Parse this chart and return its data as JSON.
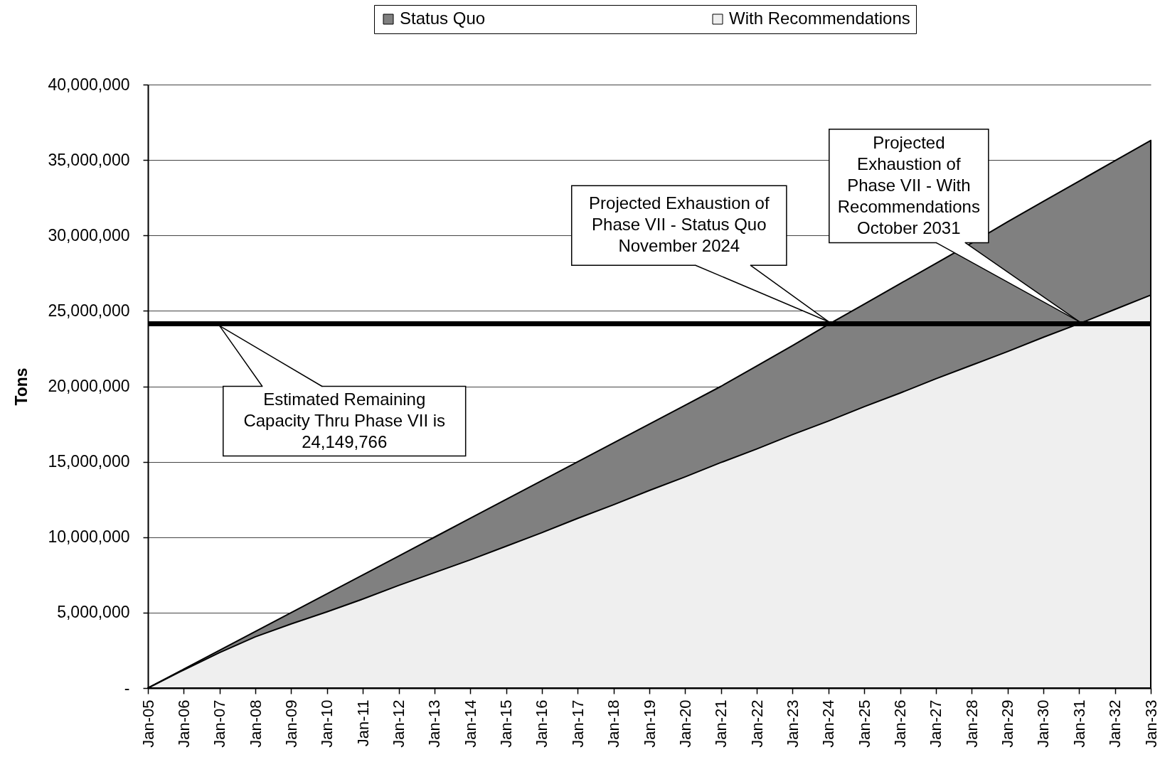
{
  "chart_data": {
    "type": "area",
    "ylabel": "Tons",
    "categories": [
      "Jan-05",
      "Jan-06",
      "Jan-07",
      "Jan-08",
      "Jan-09",
      "Jan-10",
      "Jan-11",
      "Jan-12",
      "Jan-13",
      "Jan-14",
      "Jan-15",
      "Jan-16",
      "Jan-17",
      "Jan-18",
      "Jan-19",
      "Jan-20",
      "Jan-21",
      "Jan-22",
      "Jan-23",
      "Jan-24",
      "Jan-25",
      "Jan-26",
      "Jan-27",
      "Jan-28",
      "Jan-29",
      "Jan-30",
      "Jan-31",
      "Jan-32",
      "Jan-33"
    ],
    "series": [
      {
        "name": "Status Quo",
        "color": "#808080",
        "values": [
          0,
          1250000,
          2500000,
          3750000,
          5000000,
          6250000,
          7500000,
          8750000,
          10000000,
          11250000,
          12500000,
          13750000,
          15000000,
          16250000,
          17500000,
          18750000,
          20000000,
          21350000,
          22700000,
          24100000,
          25450000,
          26800000,
          28150000,
          29500000,
          30900000,
          32250000,
          33600000,
          34950000,
          36300000
        ]
      },
      {
        "name": "With Recommendations",
        "color": "#efefef",
        "values": [
          0,
          1200000,
          2350000,
          3400000,
          4250000,
          5050000,
          5900000,
          6800000,
          7650000,
          8500000,
          9400000,
          10300000,
          11250000,
          12150000,
          13100000,
          14000000,
          14950000,
          15850000,
          16800000,
          17700000,
          18650000,
          19550000,
          20500000,
          21400000,
          22300000,
          23250000,
          24150000,
          25100000,
          26050000
        ]
      }
    ],
    "ylim": [
      0,
      40000000
    ],
    "yticks": [
      {
        "value": 0,
        "label": "-"
      },
      {
        "value": 5000000,
        "label": "5,000,000"
      },
      {
        "value": 10000000,
        "label": "10,000,000"
      },
      {
        "value": 15000000,
        "label": "15,000,000"
      },
      {
        "value": 20000000,
        "label": "20,000,000"
      },
      {
        "value": 25000000,
        "label": "25,000,000"
      },
      {
        "value": 30000000,
        "label": "30,000,000"
      },
      {
        "value": 35000000,
        "label": "35,000,000"
      },
      {
        "value": 40000000,
        "label": "40,000,000"
      }
    ],
    "grid": "y",
    "legend": "top",
    "ref_lines": [
      {
        "axis": "y",
        "value": 24149766,
        "color": "#000000"
      }
    ],
    "annotations": [
      {
        "text": "Estimated Remaining Capacity Thru Phase VII is 24,149,766",
        "x": "Jan-07",
        "y": 24149766
      },
      {
        "text": "Projected Exhaustion of Phase VII - Status Quo November 2024",
        "x": "Jan-24",
        "y": 24149766
      },
      {
        "text": "Projected Exhaustion of Phase VII - With Recommendations October 2031",
        "x": "Jan-31",
        "y": 24149766
      }
    ]
  }
}
